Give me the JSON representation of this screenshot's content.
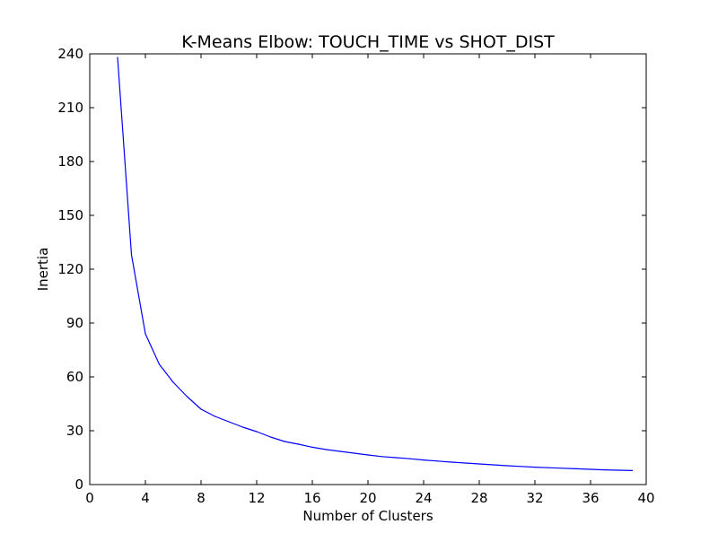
{
  "chart_data": {
    "type": "line",
    "title": "K-Means Elbow: TOUCH_TIME vs SHOT_DIST",
    "xlabel": "Number of Clusters",
    "ylabel": "Inertia",
    "xlim": [
      0,
      40
    ],
    "ylim": [
      0,
      240
    ],
    "xticks": [
      0,
      4,
      8,
      12,
      16,
      20,
      24,
      28,
      32,
      36,
      40
    ],
    "yticks": [
      0,
      30,
      60,
      90,
      120,
      150,
      180,
      210,
      240
    ],
    "grid": false,
    "series": [
      {
        "color": "#0000ff",
        "x": [
          2,
          3,
          4,
          5,
          6,
          7,
          8,
          9,
          10,
          11,
          12,
          13,
          14,
          15,
          16,
          17,
          18,
          19,
          20,
          21,
          22,
          23,
          24,
          25,
          26,
          27,
          28,
          29,
          30,
          31,
          32,
          33,
          34,
          35,
          36,
          37,
          38,
          39
        ],
        "y": [
          238,
          128,
          84,
          67,
          57,
          49,
          42,
          38,
          35,
          32,
          29.5,
          26.5,
          24,
          22.5,
          20.8,
          19.5,
          18.5,
          17.5,
          16.5,
          15.6,
          15,
          14.4,
          13.7,
          13.1,
          12.5,
          12,
          11.5,
          11,
          10.5,
          10.1,
          9.7,
          9.4,
          9.1,
          8.8,
          8.5,
          8.2,
          8,
          7.8
        ]
      }
    ]
  }
}
